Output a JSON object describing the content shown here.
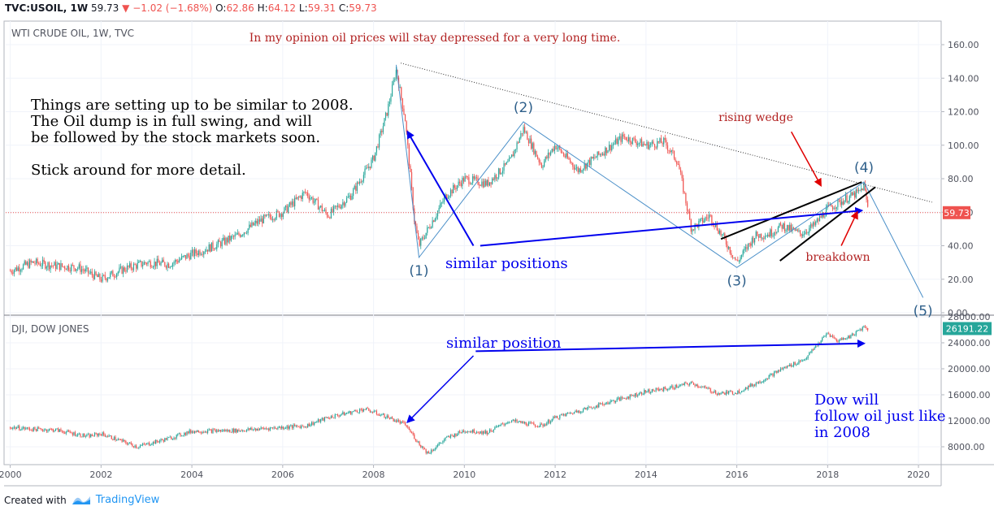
{
  "header": {
    "symbol": "TVC:USOIL, 1W",
    "last": "59.73",
    "arrow": "▼",
    "change": "−1.02 (−1.68%)",
    "open_label": "O:",
    "open": "62.86",
    "high_label": "H:",
    "high": "64.12",
    "low_label": "L:",
    "low": "59.31",
    "close_label": "C:",
    "close": "59.73"
  },
  "footer": {
    "created_with": "Created with",
    "brand": "TradingView"
  },
  "chart_data": [
    {
      "type": "line",
      "style": "candlestick",
      "title": "WTI CRUDE OIL, 1W, TVC",
      "x": [
        2000.0,
        2000.5,
        2001.0,
        2001.5,
        2002.0,
        2002.5,
        2003.0,
        2003.5,
        2004.0,
        2004.5,
        2005.0,
        2005.5,
        2006.0,
        2006.5,
        2007.0,
        2007.5,
        2008.0,
        2008.3,
        2008.5,
        2008.7,
        2008.9,
        2009.0,
        2009.3,
        2009.6,
        2010.0,
        2010.5,
        2011.0,
        2011.3,
        2011.7,
        2012.0,
        2012.5,
        2013.0,
        2013.5,
        2014.0,
        2014.4,
        2014.7,
        2015.0,
        2015.4,
        2015.7,
        2016.0,
        2016.4,
        2016.7,
        2017.0,
        2017.4,
        2017.7,
        2018.0,
        2018.4,
        2018.7,
        2018.8,
        2018.9
      ],
      "y": [
        25,
        30,
        28,
        27,
        20,
        26,
        30,
        29,
        35,
        40,
        46,
        55,
        60,
        72,
        58,
        70,
        92,
        120,
        145,
        115,
        55,
        40,
        55,
        70,
        80,
        77,
        90,
        110,
        88,
        100,
        85,
        95,
        105,
        100,
        102,
        90,
        50,
        58,
        45,
        30,
        46,
        47,
        52,
        47,
        52,
        62,
        68,
        72,
        76,
        60
      ],
      "ylim": [
        0,
        165
      ],
      "yticks": [
        "160.00",
        "140.00",
        "120.00",
        "100.00",
        "80.00",
        "60.00",
        "40.00",
        "20.00",
        "0.00"
      ],
      "last_value_label": "59.73",
      "projection": {
        "x": [
          2008.5,
          2009.0,
          2011.3,
          2016.0,
          2018.8,
          2020.1
        ],
        "y": [
          148,
          33,
          114,
          27,
          78,
          9
        ]
      },
      "trendline": {
        "x": [
          2008.6,
          2020.3
        ],
        "y": [
          149,
          66
        ]
      },
      "wave_labels": [
        "(1)",
        "(2)",
        "(3)",
        "(4)",
        "(5)"
      ],
      "annotations": {
        "headline": "In my opinion oil prices will stay depressed for a very long time.",
        "left_text": [
          "Things are setting up to be similar to 2008.",
          "The Oil dump is in full swing, and will",
          "be followed by the stock markets soon.",
          "",
          "Stick around for more detail."
        ],
        "rising_wedge": "rising wedge",
        "breakdown": "breakdown",
        "similar_positions": "similar positions"
      }
    },
    {
      "type": "line",
      "style": "candlestick",
      "title": "DJI, DOW JONES",
      "x": [
        2000.0,
        2000.5,
        2001.0,
        2001.7,
        2002.0,
        2002.8,
        2003.5,
        2004.0,
        2005.0,
        2006.0,
        2006.5,
        2007.0,
        2007.8,
        2008.3,
        2008.7,
        2009.0,
        2009.2,
        2009.6,
        2010.0,
        2010.5,
        2011.0,
        2011.7,
        2012.0,
        2013.0,
        2014.0,
        2014.5,
        2015.0,
        2015.6,
        2016.0,
        2016.5,
        2017.0,
        2017.5,
        2018.0,
        2018.2,
        2018.5,
        2018.8,
        2018.9
      ],
      "y": [
        11000,
        10700,
        10600,
        9600,
        10000,
        8000,
        9300,
        10400,
        10500,
        11000,
        11200,
        12500,
        13800,
        12600,
        11400,
        8500,
        7000,
        9300,
        10500,
        10200,
        12000,
        11200,
        12500,
        14500,
        16500,
        17000,
        17800,
        16200,
        16400,
        18000,
        20000,
        21500,
        25500,
        24300,
        25000,
        26500,
        26191
      ],
      "ylim": [
        6000,
        28000
      ],
      "yticks": [
        "28000.00",
        "24000.00",
        "20000.00",
        "16000.00",
        "12000.00",
        "8000.00"
      ],
      "last_value_label": "26191.22",
      "annotations": {
        "similar_position": "similar position",
        "right_text": [
          "Dow will",
          "follow oil just like",
          "in 2008"
        ]
      }
    }
  ],
  "xaxis": {
    "ticks": [
      "2000",
      "2002",
      "2004",
      "2006",
      "2008",
      "2010",
      "2012",
      "2014",
      "2016",
      "2018",
      "2020"
    ],
    "range": [
      1999.9,
      2020.5
    ]
  },
  "colors": {
    "up": "#26a69a",
    "down": "#ef5350",
    "arrow": "#0000ee",
    "wave": "#4a8fc8",
    "annot_red": "#b22222"
  }
}
